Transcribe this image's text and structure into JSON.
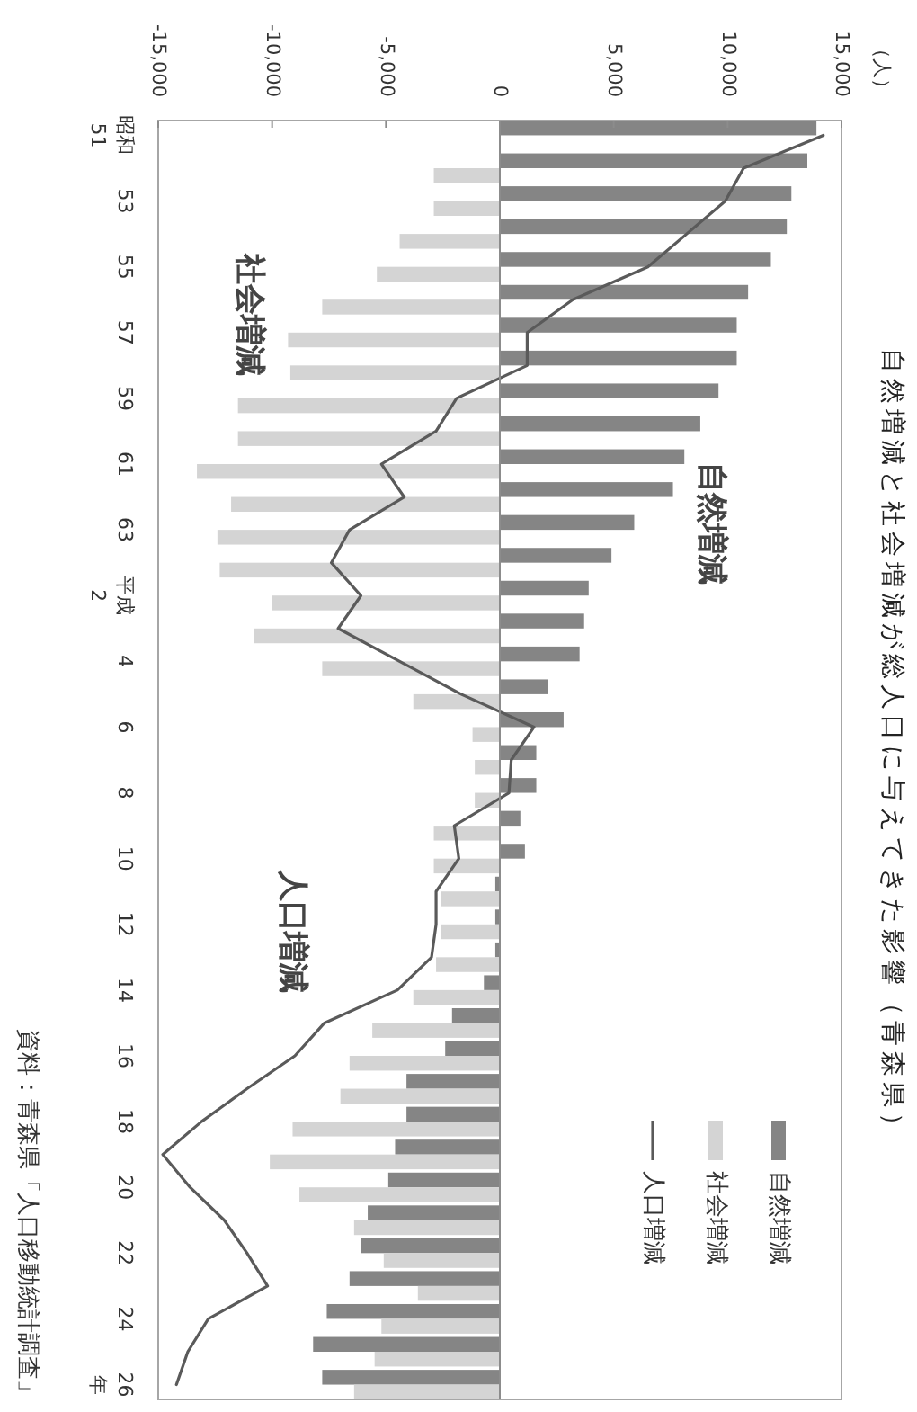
{
  "chart_data": {
    "type": "bar",
    "orientation": "horizontal",
    "title": "自然増減と社会増減が総人口に与えてきた影響（青森県）",
    "ylabel": "年",
    "categories": [
      "昭和51",
      null,
      "53",
      null,
      "55",
      null,
      "57",
      null,
      "59",
      null,
      "61",
      null,
      "63",
      null,
      "平成2",
      null,
      "4",
      null,
      "6",
      null,
      "8",
      null,
      "10",
      null,
      "12",
      null,
      "14",
      null,
      "16",
      null,
      "18",
      null,
      "20",
      null,
      "22",
      null,
      "24",
      null,
      "26"
    ],
    "series": [
      {
        "name": "自然増減",
        "color": "#858585",
        "values": [
          13900,
          13500,
          12800,
          12600,
          11900,
          10900,
          10400,
          10400,
          9600,
          8800,
          8100,
          7600,
          5900,
          4900,
          3900,
          3700,
          3500,
          2100,
          2800,
          1600,
          1600,
          900,
          1100,
          -200,
          -200,
          -200,
          -700,
          -2100,
          -2400,
          -4100,
          -4100,
          -4600,
          -4900,
          -5800,
          -6100,
          -6600,
          -7600,
          -8200,
          -7800
        ]
      },
      {
        "name": "社会増減",
        "color": "#d4d4d4",
        "values": [
          null,
          -2900,
          -2900,
          -4400,
          -5400,
          -7800,
          -9300,
          -9200,
          -11500,
          -11500,
          -13300,
          -11800,
          -12400,
          -12300,
          -10000,
          -10800,
          -7800,
          -3800,
          -1200,
          -1100,
          -1100,
          -2900,
          -2900,
          -2600,
          -2600,
          -2800,
          -3800,
          -5600,
          -6600,
          -7000,
          -9100,
          -10100,
          -8800,
          -6400,
          -5100,
          -3600,
          -5200,
          -5500,
          -6400
        ]
      },
      {
        "name": "人口増減",
        "type": "line",
        "color": "#5a5a5a",
        "values": [
          14200,
          10700,
          9900,
          8200,
          6500,
          3200,
          1200,
          1200,
          -1900,
          -2800,
          -5200,
          -4200,
          -6600,
          -7400,
          -6100,
          -7100,
          -4400,
          -1700,
          1500,
          500,
          400,
          -2000,
          -1800,
          -2800,
          -2800,
          -3000,
          -4500,
          -7700,
          -9000,
          -11100,
          -13100,
          -14800,
          -13600,
          -12100,
          -11100,
          -10200,
          -12800,
          -13700,
          -14200
        ]
      }
    ],
    "xlim": [
      -15000,
      15000
    ],
    "xticks": [
      {
        "value": -15000,
        "label": "-15,000"
      },
      {
        "value": -10000,
        "label": "-10,000"
      },
      {
        "value": -5000,
        "label": "-5,000"
      },
      0,
      {
        "value": 5000,
        "label": "5,000"
      },
      {
        "value": 10000,
        "label": "10,000"
      },
      {
        "value": 15000,
        "label": "15,000"
      }
    ],
    "legend": "bottom right",
    "annotations": [
      "（人）",
      "資料：青森県「人口移動統計調査」"
    ]
  }
}
